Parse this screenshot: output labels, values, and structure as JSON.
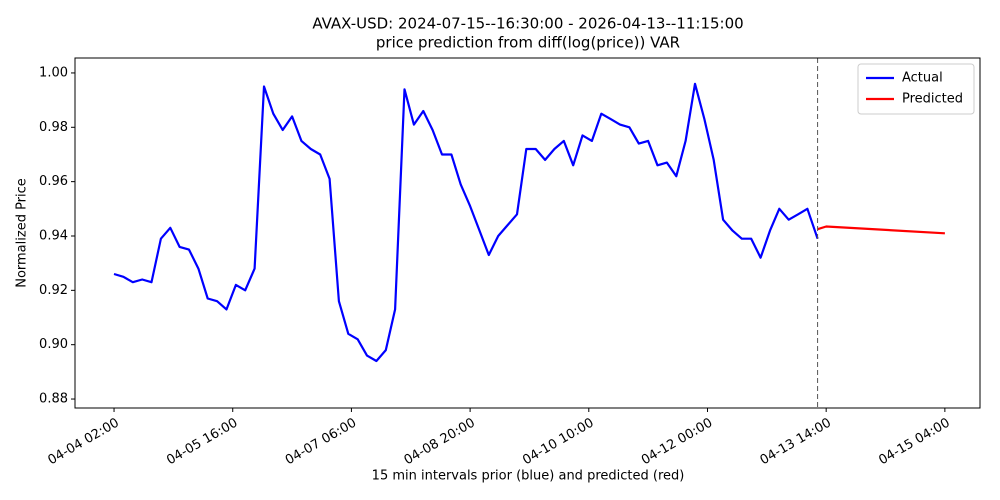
{
  "chart_data": {
    "type": "line",
    "title": "AVAX-USD: 2024-07-15--16:30:00 - 2026-04-13--11:15:00",
    "subtitle": "price prediction from diff(log(price)) VAR",
    "x_label": "15 min intervals prior (blue) and predicted (red)",
    "y_label": "Normalized Price",
    "series": [
      {
        "name": "Actual",
        "color": "#0000ff",
        "x": [
          "04-04 02:00",
          "04-04 05:00",
          "04-04 08:00",
          "04-04 11:00",
          "04-04 14:00",
          "04-04 17:00",
          "04-04 20:00",
          "04-04 23:00",
          "04-05 02:00",
          "04-05 05:00",
          "04-05 08:00",
          "04-05 11:00",
          "04-05 14:00",
          "04-05 17:00",
          "04-05 20:00",
          "04-05 23:00",
          "04-06 02:00",
          "04-06 05:00",
          "04-06 08:00",
          "04-06 11:00",
          "04-06 14:00",
          "04-06 17:00",
          "04-06 20:00",
          "04-06 23:00",
          "04-07 02:00",
          "04-07 05:00",
          "04-07 08:00",
          "04-07 11:00",
          "04-07 14:00",
          "04-07 17:00",
          "04-07 20:00",
          "04-07 23:00",
          "04-08 02:00",
          "04-08 05:00",
          "04-08 08:00",
          "04-08 11:00",
          "04-08 14:00",
          "04-08 17:00",
          "04-08 20:00",
          "04-08 23:00",
          "04-09 02:00",
          "04-09 05:00",
          "04-09 08:00",
          "04-09 11:00",
          "04-09 14:00",
          "04-09 17:00",
          "04-09 20:00",
          "04-09 23:00",
          "04-10 02:00",
          "04-10 05:00",
          "04-10 08:00",
          "04-10 11:00",
          "04-10 14:00",
          "04-10 17:00",
          "04-10 20:00",
          "04-10 23:00",
          "04-11 02:00",
          "04-11 05:00",
          "04-11 08:00",
          "04-11 11:00",
          "04-11 14:00",
          "04-11 17:00",
          "04-11 20:00",
          "04-11 23:00",
          "04-12 02:00",
          "04-12 05:00",
          "04-12 08:00",
          "04-12 11:00",
          "04-12 14:00",
          "04-12 17:00",
          "04-12 20:00",
          "04-12 23:00",
          "04-13 02:00",
          "04-13 05:00",
          "04-13 08:00",
          "04-13 11:15"
        ],
        "values": [
          0.926,
          0.925,
          0.923,
          0.924,
          0.923,
          0.939,
          0.943,
          0.936,
          0.935,
          0.928,
          0.917,
          0.916,
          0.913,
          0.922,
          0.92,
          0.928,
          0.995,
          0.985,
          0.979,
          0.984,
          0.975,
          0.972,
          0.97,
          0.961,
          0.916,
          0.904,
          0.902,
          0.896,
          0.894,
          0.898,
          0.913,
          0.994,
          0.981,
          0.986,
          0.979,
          0.97,
          0.97,
          0.959,
          0.951,
          0.942,
          0.933,
          0.94,
          0.944,
          0.948,
          0.972,
          0.972,
          0.968,
          0.972,
          0.975,
          0.966,
          0.977,
          0.975,
          0.985,
          0.983,
          0.981,
          0.98,
          0.974,
          0.975,
          0.966,
          0.967,
          0.962,
          0.975,
          0.996,
          0.983,
          0.968,
          0.946,
          0.942,
          0.939,
          0.939,
          0.932,
          0.942,
          0.95,
          0.946,
          0.948,
          0.95,
          0.939
        ]
      },
      {
        "name": "Predicted",
        "color": "#ff0000",
        "x": [
          "04-13 11:15",
          "04-13 14:00",
          "04-15 04:00"
        ],
        "values": [
          0.9425,
          0.9435,
          0.941
        ]
      }
    ],
    "vline_x": "04-13 11:15",
    "xlim": [
      "04-03 13:30",
      "04-15 15:15"
    ],
    "xticks": [
      "04-04 02:00",
      "04-05 16:00",
      "04-07 06:00",
      "04-08 20:00",
      "04-10 10:00",
      "04-12 00:00",
      "04-13 14:00",
      "04-15 04:00"
    ],
    "ylim": [
      0.8767,
      1.0055
    ],
    "yticks": [
      0.88,
      {
        "value": 0.9,
        "label": "0.90"
      },
      0.92,
      0.94,
      0.96,
      0.98,
      {
        "value": 1,
        "label": "1.00"
      }
    ],
    "legend": "upper right",
    "grid": false
  }
}
